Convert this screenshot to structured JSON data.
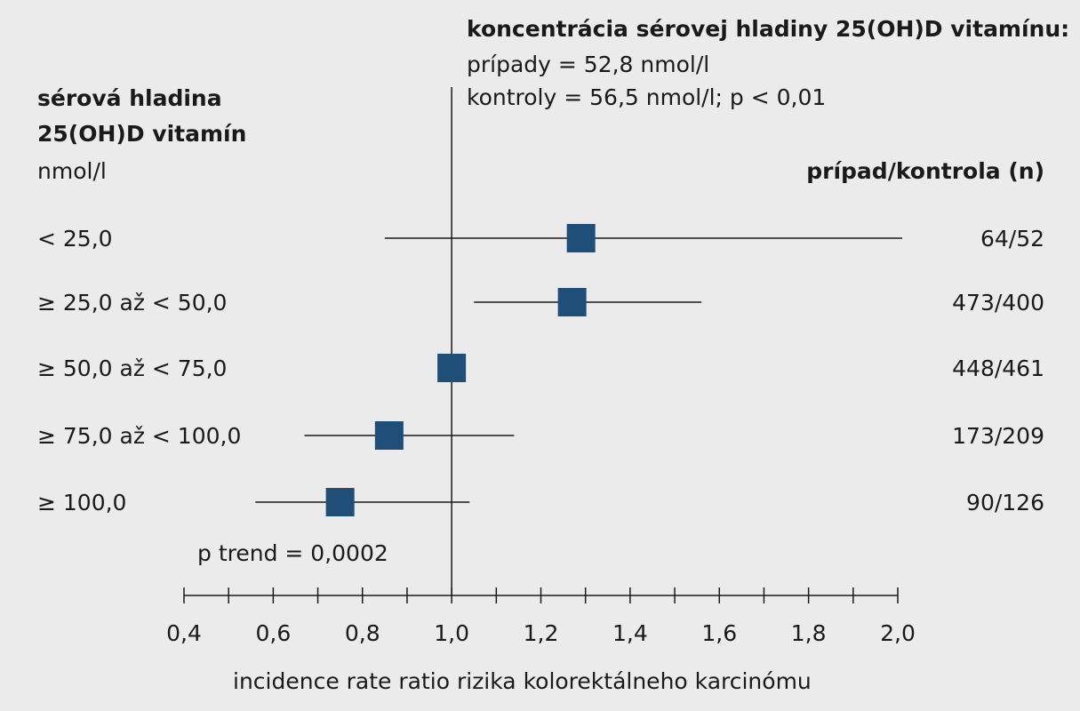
{
  "chart_data": {
    "type": "forest",
    "header": {
      "title": "koncentrácia sérovej hladiny 25(OH)D vitamínu:",
      "line1": "prípady = 52,8 nmol/l",
      "line2": "kontroly = 56,5 nmol/l; p < 0,01"
    },
    "left_header": {
      "line1": "sérová hladina",
      "line2": "25(OH)D vitamín",
      "unit": "nmol/l"
    },
    "right_header": "prípad/kontrola (n)",
    "categories": [
      "< 25,0",
      "≥ 25,0 až < 50,0",
      "≥ 50,0 až < 75,0",
      "≥ 75,0 až < 100,0",
      "≥ 100,0"
    ],
    "estimates": [
      1.29,
      1.27,
      1.0,
      0.86,
      0.75
    ],
    "ci_lower": [
      0.85,
      1.05,
      1.0,
      0.67,
      0.56
    ],
    "ci_upper": [
      2.01,
      1.56,
      1.0,
      1.14,
      1.04
    ],
    "counts": [
      "64/52",
      "473/400",
      "448/461",
      "173/209",
      "90/126"
    ],
    "annotation": "p trend = 0,0002",
    "xlabel": "incidence rate ratio rizika kolorektálneho karcinómu",
    "xlim": [
      0.4,
      2.0
    ],
    "xticks": [
      "0,4",
      "0,6",
      "0,8",
      "1,0",
      "1,2",
      "1,4",
      "1,6",
      "1,8",
      "2,0"
    ],
    "reference_line": 1.0,
    "marker_color": "#1f4e79"
  }
}
